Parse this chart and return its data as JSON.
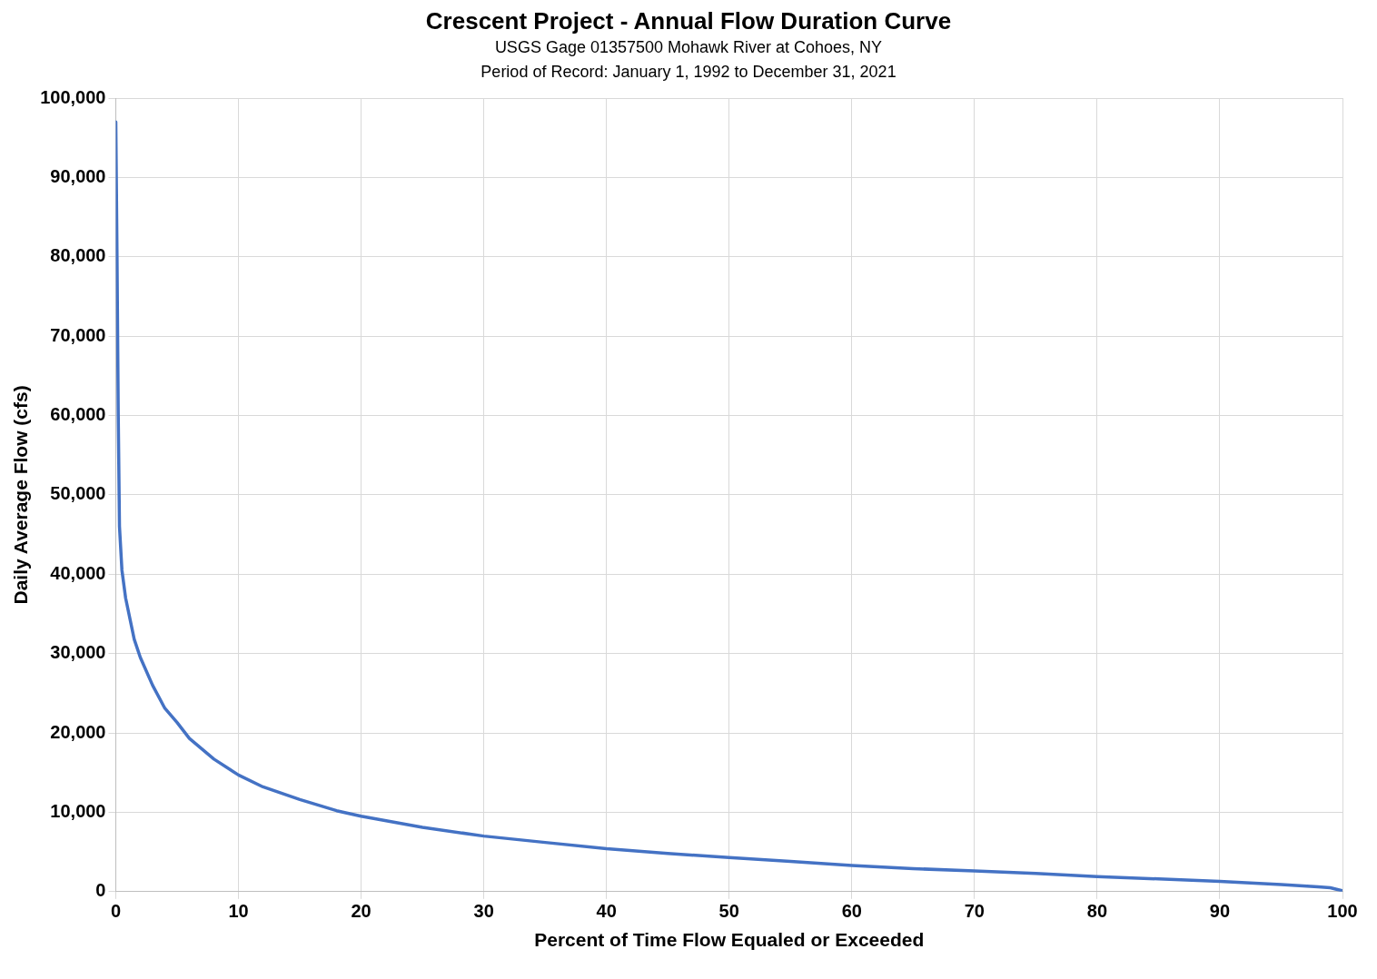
{
  "chart_data": {
    "type": "line",
    "title": "Crescent Project - Annual Flow Duration Curve",
    "subtitle": "USGS Gage 01357500 Mohawk River at Cohoes, NY\nPeriod of Record: January 1, 1992 to December 31, 2021",
    "xlabel": "Percent of Time Flow Equaled or Exceeded",
    "ylabel": "Daily Average Flow (cfs)",
    "series": [
      {
        "color": "#4472c4",
        "x": [
          0,
          0.1,
          0.2,
          0.3,
          0.5,
          0.8,
          1.5,
          2,
          3,
          4,
          5,
          6,
          8,
          10,
          12,
          15,
          18,
          20,
          25,
          30,
          35,
          40,
          45,
          50,
          55,
          60,
          65,
          70,
          75,
          80,
          85,
          90,
          95,
          98,
          99,
          100
        ],
        "values": [
          97000,
          80000,
          60000,
          46000,
          40500,
          37000,
          31800,
          29500,
          26000,
          23100,
          21300,
          19300,
          16700,
          14700,
          13200,
          11600,
          10200,
          9500,
          8100,
          7000,
          6200,
          5400,
          4800,
          4300,
          3800,
          3300,
          2900,
          2600,
          2300,
          1900,
          1600,
          1300,
          900,
          600,
          500,
          100
        ]
      }
    ],
    "xlim": [
      0,
      100
    ],
    "xticks": [
      0,
      10,
      20,
      30,
      40,
      50,
      60,
      70,
      80,
      90,
      100
    ],
    "ylim": [
      0,
      100000
    ],
    "yticks": [
      {
        "value": 0,
        "label": "0"
      },
      {
        "value": 10000,
        "label": "10,000"
      },
      {
        "value": 20000,
        "label": "20,000"
      },
      {
        "value": 30000,
        "label": "30,000"
      },
      {
        "value": 40000,
        "label": "40,000"
      },
      {
        "value": 50000,
        "label": "50,000"
      },
      {
        "value": 60000,
        "label": "60,000"
      },
      {
        "value": 70000,
        "label": "70,000"
      },
      {
        "value": 80000,
        "label": "80,000"
      },
      {
        "value": 90000,
        "label": "90,000"
      },
      {
        "value": 100000,
        "label": "100,000"
      }
    ],
    "grid": true,
    "legend": false,
    "marker": "none",
    "line_style": "solid"
  }
}
